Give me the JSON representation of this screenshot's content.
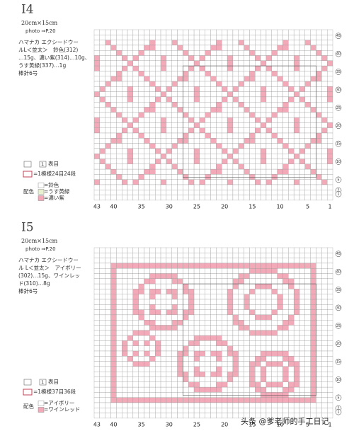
{
  "sections": [
    {
      "id": "I4",
      "size": "20cm×15cm",
      "photo": "photo ⇒P.20",
      "materials": [
        "ハマナカ エクシードウー",
        "ルL＜並太＞　鈴色(312)",
        "…15g、濃い紫(314)…10g、",
        "うす黄緑(337)…1g"
      ],
      "needle": "棒針6号",
      "stitch_key": "1",
      "stitch_label": "表目",
      "repeat": "=1模様24目24段",
      "color_title": "配色",
      "colors": [
        "=鈴色",
        "=うす黄緑",
        "=濃い紫"
      ],
      "col_labels": [
        43,
        40,
        35,
        30,
        25,
        20,
        15,
        10,
        5,
        1
      ],
      "row_labels": [
        45,
        40,
        35,
        30,
        25,
        20,
        15,
        10,
        5,
        2,
        1
      ]
    },
    {
      "id": "I5",
      "size": "20cm×15cm",
      "photo": "photo ⇒P.20",
      "materials": [
        "ハマナカ エクシードウー",
        "ル L＜並太＞　アイボリー",
        "(302)…15g、ワインレッ",
        "ド(310)…8g"
      ],
      "needle": "棒針6号",
      "stitch_key": "1",
      "stitch_label": "表目",
      "repeat": "=1模様37目36段",
      "color_title": "配色",
      "colors": [
        "=アイボリー",
        "=ワインレッド"
      ],
      "col_labels": [
        43,
        40,
        35,
        30,
        25,
        20,
        15,
        10,
        5,
        1
      ],
      "row_labels": [
        45,
        40,
        35,
        30,
        25,
        20,
        15,
        10,
        5,
        2,
        1
      ]
    }
  ],
  "watermark": "头条 @爹老师的手工日记"
}
